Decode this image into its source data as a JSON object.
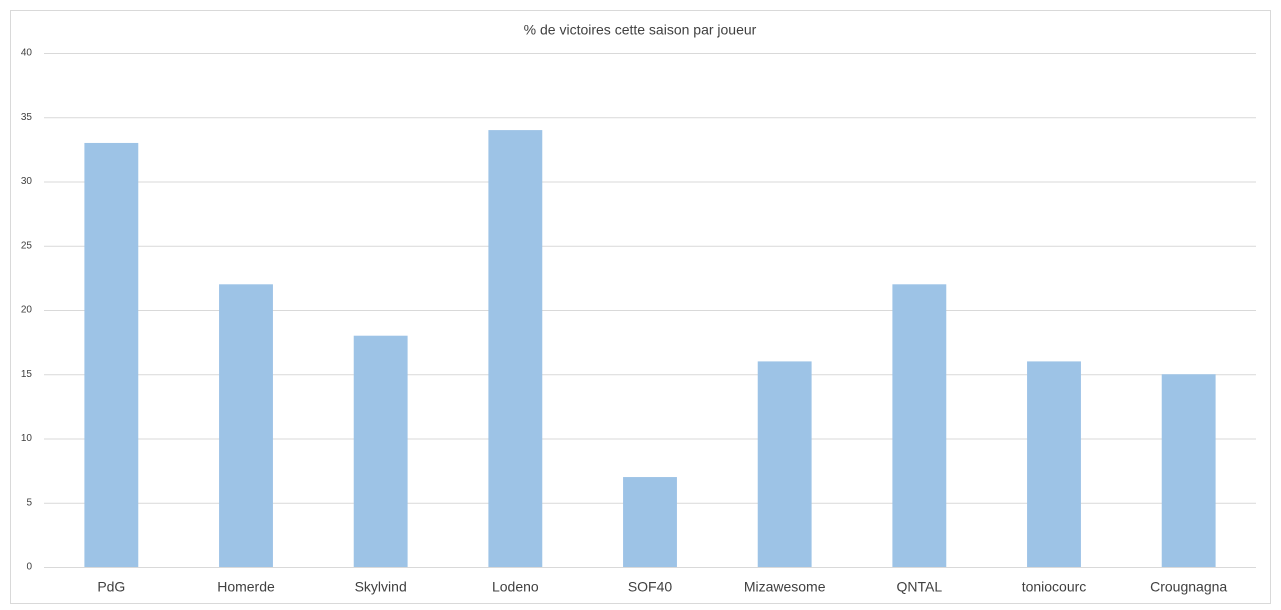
{
  "chart_data": {
    "type": "bar",
    "title": "% de victoires cette saison par joueur",
    "categories": [
      "PdG",
      "Homerde",
      "Skylvind",
      "Lodeno",
      "SOF40",
      "Mizawesome",
      "QNTAL",
      "toniocourc",
      "Crougnagna"
    ],
    "values": [
      33,
      22,
      18,
      34,
      7,
      16,
      22,
      16,
      15
    ],
    "color": "#9dc3e6",
    "ylim": [
      0,
      40
    ],
    "yticks": [
      0,
      5,
      10,
      15,
      20,
      25,
      30,
      35,
      40
    ],
    "grid": true
  }
}
